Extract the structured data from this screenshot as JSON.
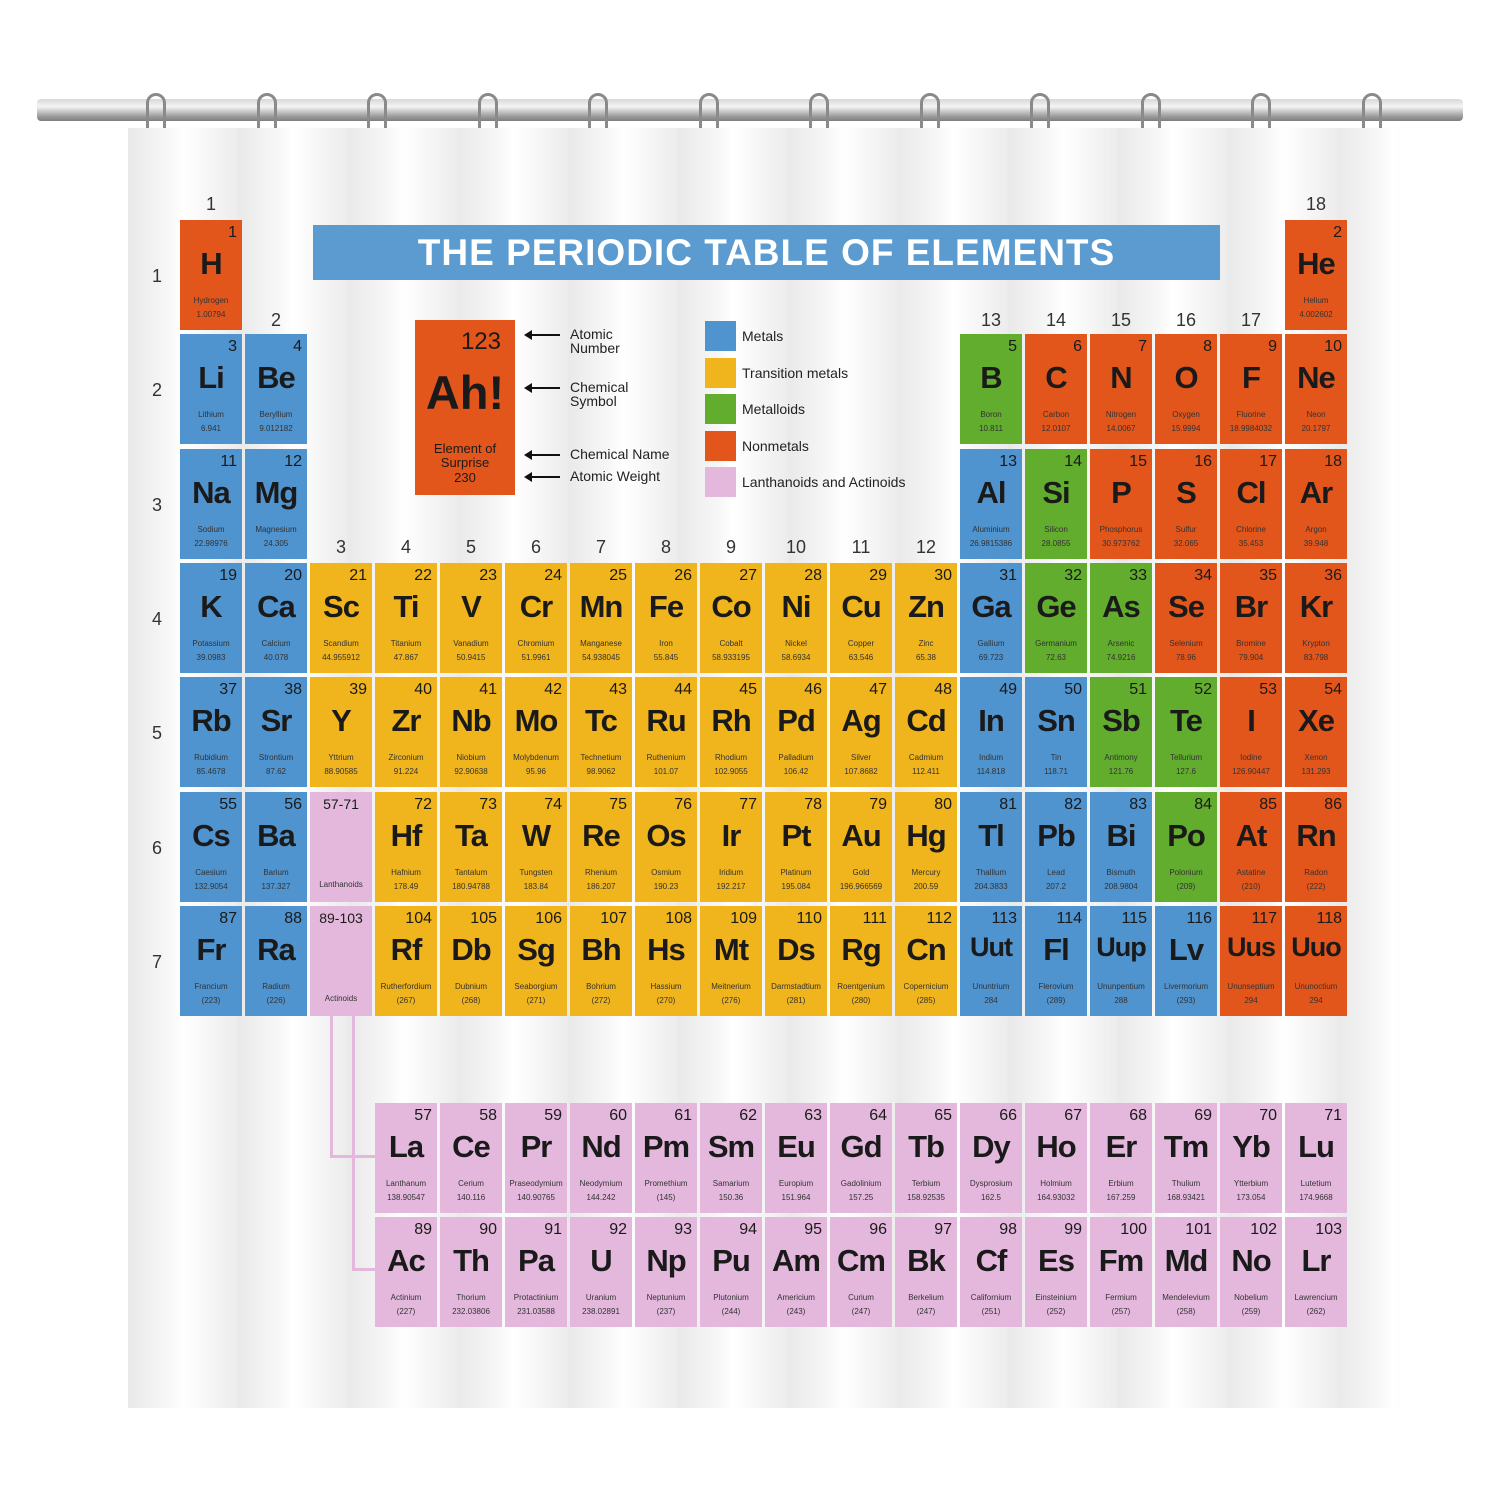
{
  "title": "THE PERIODIC TABLE OF ELEMENTS",
  "colors": {
    "metal": "#4f93cf",
    "transition": "#f0b41c",
    "metalloid": "#62ac2e",
    "nonmetal": "#e2561c",
    "lanact": "#e3b8dc",
    "banner": "#5b9bd0"
  },
  "group_labels": [
    "1",
    "2",
    "3",
    "4",
    "5",
    "6",
    "7",
    "8",
    "9",
    "10",
    "11",
    "12",
    "13",
    "14",
    "15",
    "16",
    "17",
    "18"
  ],
  "period_labels": [
    "1",
    "2",
    "3",
    "4",
    "5",
    "6",
    "7"
  ],
  "key": {
    "number": "123",
    "symbol": "Ah!",
    "name": "Element of Surprise",
    "weight": "230",
    "labels": {
      "number": "Atomic Number",
      "symbol": "Chemical Symbol",
      "name": "Chemical Name",
      "weight": "Atomic Weight"
    }
  },
  "legend": [
    {
      "label": "Metals",
      "cat": "metal"
    },
    {
      "label": "Transition metals",
      "cat": "transition"
    },
    {
      "label": "Metalloids",
      "cat": "metalloid"
    },
    {
      "label": "Nonmetals",
      "cat": "nonmetal"
    },
    {
      "label": "Lanthanoids and Actinoids",
      "cat": "lanact"
    }
  ],
  "placeholders": [
    {
      "range": "57-71",
      "label": "Lanthanoids"
    },
    {
      "range": "89-103",
      "label": "Actinoids"
    }
  ],
  "elements": [
    [
      "1",
      "H",
      "Hydrogen",
      "1.00794",
      "nonmetal"
    ],
    [
      "2",
      "He",
      "Helium",
      "4.002602",
      "nonmetal"
    ],
    [
      "3",
      "Li",
      "Lithium",
      "6.941",
      "metal"
    ],
    [
      "4",
      "Be",
      "Beryllium",
      "9.012182",
      "metal"
    ],
    [
      "5",
      "B",
      "Boron",
      "10.811",
      "metalloid"
    ],
    [
      "6",
      "C",
      "Carbon",
      "12.0107",
      "nonmetal"
    ],
    [
      "7",
      "N",
      "Nitrogen",
      "14.0067",
      "nonmetal"
    ],
    [
      "8",
      "O",
      "Oxygen",
      "15.9994",
      "nonmetal"
    ],
    [
      "9",
      "F",
      "Fluorine",
      "18.9984032",
      "nonmetal"
    ],
    [
      "10",
      "Ne",
      "Neon",
      "20.1797",
      "nonmetal"
    ],
    [
      "11",
      "Na",
      "Sodium",
      "22.98976",
      "metal"
    ],
    [
      "12",
      "Mg",
      "Magnesium",
      "24.305",
      "metal"
    ],
    [
      "13",
      "Al",
      "Aluminium",
      "26.9815386",
      "metal"
    ],
    [
      "14",
      "Si",
      "Silicon",
      "28.0855",
      "metalloid"
    ],
    [
      "15",
      "P",
      "Phosphorus",
      "30.973762",
      "nonmetal"
    ],
    [
      "16",
      "S",
      "Sulfur",
      "32.065",
      "nonmetal"
    ],
    [
      "17",
      "Cl",
      "Chlorine",
      "35.453",
      "nonmetal"
    ],
    [
      "18",
      "Ar",
      "Argon",
      "39.948",
      "nonmetal"
    ],
    [
      "19",
      "K",
      "Potassium",
      "39.0983",
      "metal"
    ],
    [
      "20",
      "Ca",
      "Calcium",
      "40.078",
      "metal"
    ],
    [
      "21",
      "Sc",
      "Scandium",
      "44.955912",
      "transition"
    ],
    [
      "22",
      "Ti",
      "Titanium",
      "47.867",
      "transition"
    ],
    [
      "23",
      "V",
      "Vanadium",
      "50.9415",
      "transition"
    ],
    [
      "24",
      "Cr",
      "Chromium",
      "51.9961",
      "transition"
    ],
    [
      "25",
      "Mn",
      "Manganese",
      "54.938045",
      "transition"
    ],
    [
      "26",
      "Fe",
      "Iron",
      "55.845",
      "transition"
    ],
    [
      "27",
      "Co",
      "Cobalt",
      "58.933195",
      "transition"
    ],
    [
      "28",
      "Ni",
      "Nickel",
      "58.6934",
      "transition"
    ],
    [
      "29",
      "Cu",
      "Copper",
      "63.546",
      "transition"
    ],
    [
      "30",
      "Zn",
      "Zinc",
      "65.38",
      "transition"
    ],
    [
      "31",
      "Ga",
      "Gallium",
      "69.723",
      "metal"
    ],
    [
      "32",
      "Ge",
      "Germanium",
      "72.63",
      "metalloid"
    ],
    [
      "33",
      "As",
      "Arsenic",
      "74.9216",
      "metalloid"
    ],
    [
      "34",
      "Se",
      "Selenium",
      "78.96",
      "nonmetal"
    ],
    [
      "35",
      "Br",
      "Bromine",
      "79.904",
      "nonmetal"
    ],
    [
      "36",
      "Kr",
      "Krypton",
      "83.798",
      "nonmetal"
    ],
    [
      "37",
      "Rb",
      "Rubidium",
      "85.4678",
      "metal"
    ],
    [
      "38",
      "Sr",
      "Strontium",
      "87.62",
      "metal"
    ],
    [
      "39",
      "Y",
      "Yttrium",
      "88.90585",
      "transition"
    ],
    [
      "40",
      "Zr",
      "Zirconium",
      "91.224",
      "transition"
    ],
    [
      "41",
      "Nb",
      "Niobium",
      "92.90638",
      "transition"
    ],
    [
      "42",
      "Mo",
      "Molybdenum",
      "95.96",
      "transition"
    ],
    [
      "43",
      "Tc",
      "Technetium",
      "98.9062",
      "transition"
    ],
    [
      "44",
      "Ru",
      "Ruthenium",
      "101.07",
      "transition"
    ],
    [
      "45",
      "Rh",
      "Rhodium",
      "102.9055",
      "transition"
    ],
    [
      "46",
      "Pd",
      "Palladium",
      "106.42",
      "transition"
    ],
    [
      "47",
      "Ag",
      "Silver",
      "107.8682",
      "transition"
    ],
    [
      "48",
      "Cd",
      "Cadmium",
      "112.411",
      "transition"
    ],
    [
      "49",
      "In",
      "Indium",
      "114.818",
      "metal"
    ],
    [
      "50",
      "Sn",
      "Tin",
      "118.71",
      "metal"
    ],
    [
      "51",
      "Sb",
      "Antimony",
      "121.76",
      "metalloid"
    ],
    [
      "52",
      "Te",
      "Tellurium",
      "127.6",
      "metalloid"
    ],
    [
      "53",
      "I",
      "Iodine",
      "126.90447",
      "nonmetal"
    ],
    [
      "54",
      "Xe",
      "Xenon",
      "131.293",
      "nonmetal"
    ],
    [
      "55",
      "Cs",
      "Caesium",
      "132.9054",
      "metal"
    ],
    [
      "56",
      "Ba",
      "Barium",
      "137.327",
      "metal"
    ],
    [
      "57",
      "La",
      "Lanthanum",
      "138.90547",
      "lanact"
    ],
    [
      "58",
      "Ce",
      "Cerium",
      "140.116",
      "lanact"
    ],
    [
      "59",
      "Pr",
      "Praseodymium",
      "140.90765",
      "lanact"
    ],
    [
      "60",
      "Nd",
      "Neodymium",
      "144.242",
      "lanact"
    ],
    [
      "61",
      "Pm",
      "Promethium",
      "(145)",
      "lanact"
    ],
    [
      "62",
      "Sm",
      "Samarium",
      "150.36",
      "lanact"
    ],
    [
      "63",
      "Eu",
      "Europium",
      "151.964",
      "lanact"
    ],
    [
      "64",
      "Gd",
      "Gadolinium",
      "157.25",
      "lanact"
    ],
    [
      "65",
      "Tb",
      "Terbium",
      "158.92535",
      "lanact"
    ],
    [
      "66",
      "Dy",
      "Dysprosium",
      "162.5",
      "lanact"
    ],
    [
      "67",
      "Ho",
      "Holmium",
      "164.93032",
      "lanact"
    ],
    [
      "68",
      "Er",
      "Erbium",
      "167.259",
      "lanact"
    ],
    [
      "69",
      "Tm",
      "Thulium",
      "168.93421",
      "lanact"
    ],
    [
      "70",
      "Yb",
      "Ytterbium",
      "173.054",
      "lanact"
    ],
    [
      "71",
      "Lu",
      "Lutetium",
      "174.9668",
      "lanact"
    ],
    [
      "72",
      "Hf",
      "Hafnium",
      "178.49",
      "transition"
    ],
    [
      "73",
      "Ta",
      "Tantalum",
      "180.94788",
      "transition"
    ],
    [
      "74",
      "W",
      "Tungsten",
      "183.84",
      "transition"
    ],
    [
      "75",
      "Re",
      "Rhenium",
      "186.207",
      "transition"
    ],
    [
      "76",
      "Os",
      "Osmium",
      "190.23",
      "transition"
    ],
    [
      "77",
      "Ir",
      "Iridium",
      "192.217",
      "transition"
    ],
    [
      "78",
      "Pt",
      "Platinum",
      "195.084",
      "transition"
    ],
    [
      "79",
      "Au",
      "Gold",
      "196.966569",
      "transition"
    ],
    [
      "80",
      "Hg",
      "Mercury",
      "200.59",
      "transition"
    ],
    [
      "81",
      "Tl",
      "Thallium",
      "204.3833",
      "metal"
    ],
    [
      "82",
      "Pb",
      "Lead",
      "207.2",
      "metal"
    ],
    [
      "83",
      "Bi",
      "Bismuth",
      "208.9804",
      "metal"
    ],
    [
      "84",
      "Po",
      "Polonium",
      "(209)",
      "metalloid"
    ],
    [
      "85",
      "At",
      "Astatine",
      "(210)",
      "nonmetal"
    ],
    [
      "86",
      "Rn",
      "Radon",
      "(222)",
      "nonmetal"
    ],
    [
      "87",
      "Fr",
      "Francium",
      "(223)",
      "metal"
    ],
    [
      "88",
      "Ra",
      "Radium",
      "(226)",
      "metal"
    ],
    [
      "89",
      "Ac",
      "Actinium",
      "(227)",
      "lanact"
    ],
    [
      "90",
      "Th",
      "Thorium",
      "232.03806",
      "lanact"
    ],
    [
      "91",
      "Pa",
      "Protactinium",
      "231.03588",
      "lanact"
    ],
    [
      "92",
      "U",
      "Uranium",
      "238.02891",
      "lanact"
    ],
    [
      "93",
      "Np",
      "Neptunium",
      "(237)",
      "lanact"
    ],
    [
      "94",
      "Pu",
      "Plutonium",
      "(244)",
      "lanact"
    ],
    [
      "95",
      "Am",
      "Americium",
      "(243)",
      "lanact"
    ],
    [
      "96",
      "Cm",
      "Curium",
      "(247)",
      "lanact"
    ],
    [
      "97",
      "Bk",
      "Berkelium",
      "(247)",
      "lanact"
    ],
    [
      "98",
      "Cf",
      "Californium",
      "(251)",
      "lanact"
    ],
    [
      "99",
      "Es",
      "Einsteinium",
      "(252)",
      "lanact"
    ],
    [
      "100",
      "Fm",
      "Fermium",
      "(257)",
      "lanact"
    ],
    [
      "101",
      "Md",
      "Mendelevium",
      "(258)",
      "lanact"
    ],
    [
      "102",
      "No",
      "Nobelium",
      "(259)",
      "lanact"
    ],
    [
      "103",
      "Lr",
      "Lawrencium",
      "(262)",
      "lanact"
    ],
    [
      "104",
      "Rf",
      "Rutherfordium",
      "(267)",
      "transition"
    ],
    [
      "105",
      "Db",
      "Dubnium",
      "(268)",
      "transition"
    ],
    [
      "106",
      "Sg",
      "Seaborgium",
      "(271)",
      "transition"
    ],
    [
      "107",
      "Bh",
      "Bohrium",
      "(272)",
      "transition"
    ],
    [
      "108",
      "Hs",
      "Hassium",
      "(270)",
      "transition"
    ],
    [
      "109",
      "Mt",
      "Meitnerium",
      "(276)",
      "transition"
    ],
    [
      "110",
      "Ds",
      "Darmstadtium",
      "(281)",
      "transition"
    ],
    [
      "111",
      "Rg",
      "Roentgenium",
      "(280)",
      "transition"
    ],
    [
      "112",
      "Cn",
      "Copernicium",
      "(285)",
      "transition"
    ],
    [
      "113",
      "Uut",
      "Ununtrium",
      "284",
      "metal"
    ],
    [
      "114",
      "Fl",
      "Flerovium",
      "(289)",
      "metal"
    ],
    [
      "115",
      "Uup",
      "Ununpentium",
      "288",
      "metal"
    ],
    [
      "116",
      "Lv",
      "Livermorium",
      "(293)",
      "metal"
    ],
    [
      "117",
      "Uus",
      "Ununseptium",
      "294",
      "nonmetal"
    ],
    [
      "118",
      "Uuo",
      "Ununoctium",
      "294",
      "nonmetal"
    ]
  ]
}
